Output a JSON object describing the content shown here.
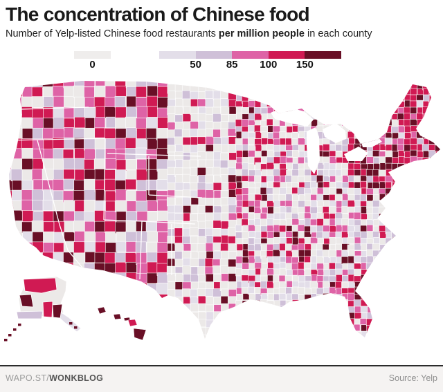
{
  "header": {
    "title": "The concentration of Chinese food",
    "subtitle_prefix": "Number of Yelp-listed Chinese food restaurants ",
    "subtitle_bold": "per million people",
    "subtitle_suffix": " in each county"
  },
  "legend": {
    "zero_label": "0",
    "zero_swatch_color": "#EFEDEC",
    "break_labels": [
      "50",
      "85",
      "100",
      "150"
    ],
    "class_colors": [
      "#E3DEE9",
      "#CFC0D8",
      "#DE63A6",
      "#D01A53",
      "#690F26"
    ]
  },
  "map": {
    "kind": "US county choropleth with Alaska and Hawaii insets",
    "zero_color": "#ECE9E8",
    "class_colors": [
      "#E3DEE9",
      "#CFC0D8",
      "#DE63A6",
      "#D01A53",
      "#690F26"
    ],
    "water_color": "#FFFFFF",
    "county_border_color": "#FFFFFF",
    "state_border_color": "#FFFFFF"
  },
  "footer": {
    "brand_prefix": "WAPO.ST/",
    "brand_bold": "WONKBLOG",
    "source": "Source: Yelp"
  }
}
